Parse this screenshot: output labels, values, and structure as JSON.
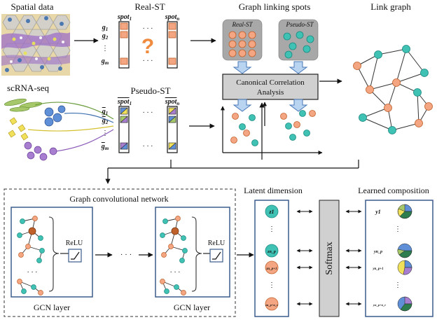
{
  "labels": {
    "spatial_data": "Spatial data",
    "real_st": "Real-ST",
    "graph_linking": "Graph linking spots",
    "link_graph": "Link graph",
    "scrna_seq": "scRNA-seq",
    "pseudo_st": "Pseudo-ST",
    "cca_line1": "Canonical Correlation",
    "cca_line2": "Analysis",
    "real_st_tag": "Real-ST",
    "pseudo_st_tag": "Pseudo-ST",
    "gcn_title": "Graph convolutional network",
    "relu_1": "ReLU",
    "relu_2": "ReLU",
    "gcn_layer_1": "GCN layer",
    "gcn_layer_2": "GCN layer",
    "latent_dimension": "Latent dimension",
    "learned_composition": "Learned composition",
    "softmax": "Softmax",
    "question_mark": "?",
    "ellipsis": "· · ·",
    "dots": "·  ·  ·"
  },
  "matrix_labels": {
    "spot_1": "spot",
    "spot_1_sub": "1",
    "spot_n": "spot",
    "spot_n_sub": "n",
    "g1": "g",
    "g1_sub": "1",
    "g2": "g",
    "g2_sub": "2",
    "gm": "g",
    "gm_sub": "m"
  },
  "latent_labels": [
    "z1",
    "zn_p",
    "zn_p+1",
    "zn_p+n_r"
  ],
  "composition_labels": [
    "y1",
    "yn_p",
    "yn_p+1",
    "yn_p+n_r"
  ],
  "colors": {
    "orange_node": "#f4a582",
    "orange_stroke": "#c0602a",
    "teal_node": "#3fc1b4",
    "teal_stroke": "#1a8a80",
    "box_border": "#3b5b8c",
    "arrow_fill": "#b8d4f0",
    "arrow_stroke": "#4a78b8",
    "gray_panel": "#a8a8a8",
    "cca_box": "#d0d0d0"
  }
}
